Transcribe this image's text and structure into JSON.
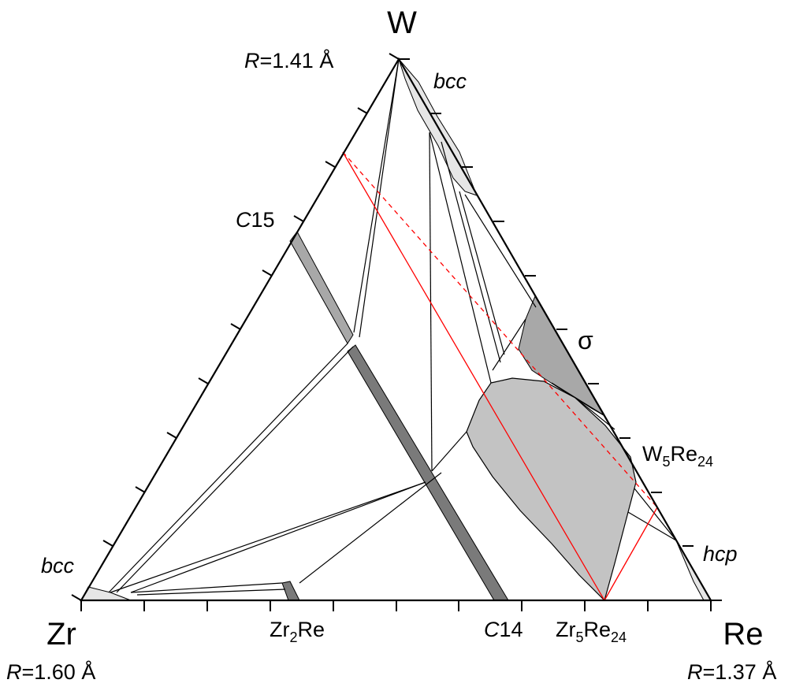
{
  "labels": {
    "corner_top": "W",
    "corner_left": "Zr",
    "corner_right": "Re",
    "radius_top": {
      "prefix": "R",
      "value": "=1.41 Å"
    },
    "radius_left": {
      "prefix": "R",
      "value": "=1.60 Å"
    },
    "radius_right": {
      "prefix": "R",
      "value": "=1.37 Å"
    },
    "bcc_top": "bcc",
    "bcc_left": "bcc",
    "hcp": "hcp",
    "sigma": "σ",
    "c15": {
      "prefix": "C",
      "value": "15"
    },
    "c14": {
      "prefix": "C",
      "value": "14"
    },
    "zr2re": {
      "a": "Zr",
      "sub": "2",
      "b": "Re"
    },
    "zr5re24": {
      "a": "Zr",
      "sub1": "5",
      "b": "Re",
      "sub2": "24"
    },
    "w5re24": {
      "a": "W",
      "sub1": "5",
      "b": "Re",
      "sub2": "24"
    }
  },
  "colors": {
    "outline": "#000000",
    "highlight": "#ff0000",
    "phase_light": "#e6e6e6",
    "phase_mid": "#a8a8a8",
    "phase_dark": "#7a7a7a",
    "phase_region": "#c3c3c3"
  }
}
